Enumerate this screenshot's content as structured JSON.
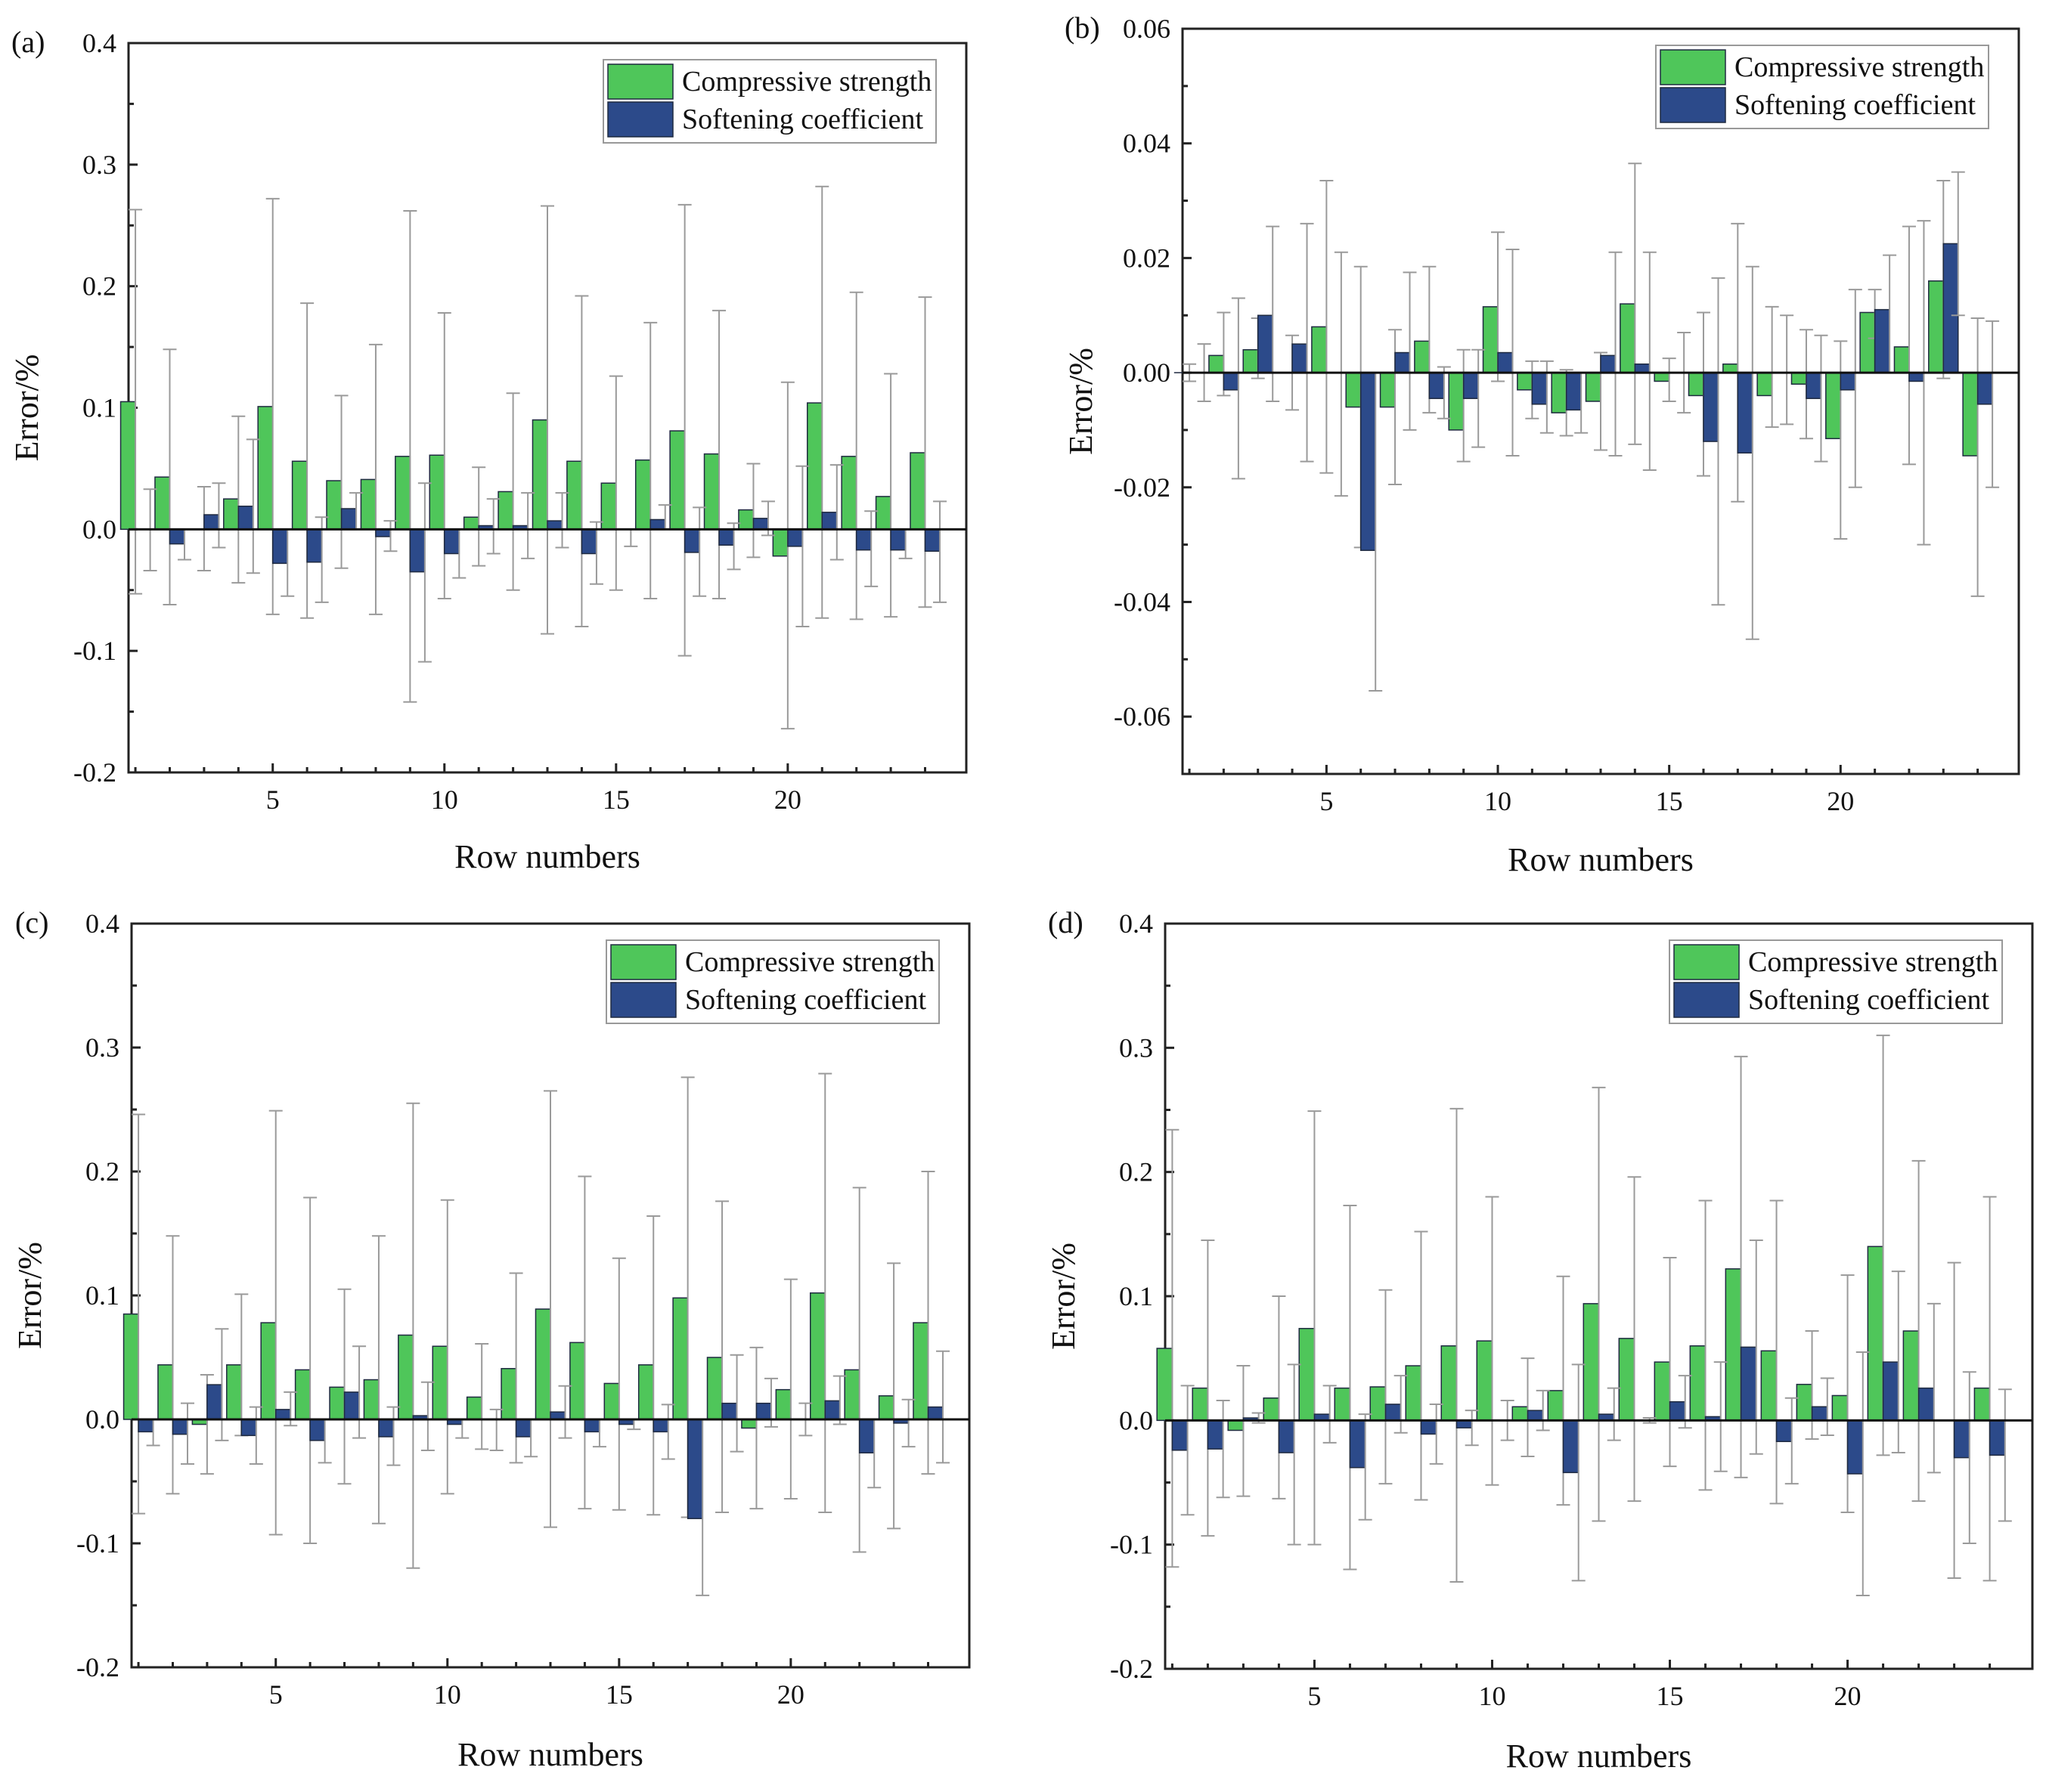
{
  "colors": {
    "compressive": "#4fc65a",
    "softening": "#2c4a8a"
  },
  "chart_data": [
    {
      "type": "bar",
      "panel_label": "(a)",
      "title": "",
      "xlabel": "Row numbers",
      "ylabel": "Error/%",
      "ylim": [
        -0.2,
        0.4
      ],
      "xticks": [
        5,
        10,
        15,
        20
      ],
      "yticks": [
        -0.2,
        -0.1,
        0.0,
        0.1,
        0.2,
        0.3,
        0.4
      ],
      "ytick_labels": [
        "-0.2",
        "-0.1",
        "0.0",
        "0.1",
        "0.2",
        "0.3",
        "0.4"
      ],
      "legend": {
        "position": "top-right",
        "entries": [
          "Compressive strength",
          "Softening coefficient"
        ]
      },
      "x": [
        1,
        2,
        3,
        4,
        5,
        6,
        7,
        8,
        9,
        10,
        11,
        12,
        13,
        14,
        15,
        16,
        17,
        18,
        19,
        20,
        21,
        22,
        23,
        24
      ],
      "series": [
        {
          "name": "Compressive strength",
          "values": [
            0.105,
            0.043,
            0.0,
            0.025,
            0.101,
            0.056,
            0.04,
            0.041,
            0.06,
            0.061,
            0.01,
            0.031,
            0.09,
            0.056,
            0.038,
            0.057,
            0.081,
            0.062,
            0.016,
            -0.022,
            0.104,
            0.06,
            0.027,
            0.063
          ],
          "error_upper": [
            0.263,
            0.148,
            0.035,
            0.093,
            0.272,
            0.186,
            0.11,
            0.152,
            0.262,
            0.178,
            0.051,
            0.112,
            0.266,
            0.192,
            0.126,
            0.17,
            0.267,
            0.18,
            0.054,
            0.121,
            0.282,
            0.195,
            0.128,
            0.191
          ],
          "error_lower": [
            -0.053,
            -0.062,
            -0.034,
            -0.044,
            -0.07,
            -0.073,
            -0.032,
            -0.07,
            -0.142,
            -0.057,
            -0.03,
            -0.05,
            -0.086,
            -0.08,
            -0.05,
            -0.057,
            -0.104,
            -0.057,
            -0.023,
            -0.164,
            -0.073,
            -0.074,
            -0.072,
            -0.064
          ]
        },
        {
          "name": "Softening coefficient",
          "values": [
            0.0,
            -0.012,
            0.012,
            0.019,
            -0.028,
            -0.027,
            0.017,
            -0.006,
            -0.035,
            -0.02,
            0.003,
            0.003,
            0.007,
            -0.02,
            0.0,
            0.008,
            -0.019,
            -0.013,
            0.009,
            -0.014,
            0.014,
            -0.017,
            -0.017,
            -0.018
          ],
          "error_upper": [
            0.033,
            0.0,
            0.038,
            0.074,
            0.0,
            0.01,
            0.03,
            0.007,
            0.038,
            0.0,
            0.025,
            0.03,
            0.03,
            0.006,
            0.0,
            0.02,
            0.018,
            0.005,
            0.023,
            0.052,
            0.053,
            0.015,
            0.0,
            0.023
          ],
          "error_lower": [
            -0.034,
            -0.025,
            -0.015,
            -0.036,
            -0.055,
            -0.06,
            0.0,
            -0.018,
            -0.109,
            -0.04,
            -0.02,
            -0.024,
            -0.015,
            -0.045,
            -0.014,
            0.0,
            -0.055,
            -0.033,
            -0.005,
            -0.08,
            -0.025,
            -0.047,
            -0.024,
            -0.06
          ]
        }
      ]
    },
    {
      "type": "bar",
      "panel_label": "(b)",
      "title": "",
      "xlabel": "Row numbers",
      "ylabel": "Error/%",
      "ylim": [
        -0.07,
        0.06
      ],
      "xticks": [
        5,
        10,
        15,
        20
      ],
      "yticks": [
        -0.06,
        -0.04,
        -0.02,
        0.0,
        0.02,
        0.04,
        0.06
      ],
      "ytick_labels": [
        "-0.06",
        "-0.04",
        "-0.02",
        "0.00",
        "0.02",
        "0.04",
        "0.06"
      ],
      "legend": {
        "position": "top-right",
        "entries": [
          "Compressive strength",
          "Softening coefficient"
        ]
      },
      "x": [
        1,
        2,
        3,
        4,
        5,
        6,
        7,
        8,
        9,
        10,
        11,
        12,
        13,
        14,
        15,
        16,
        17,
        18,
        19,
        20,
        21,
        22,
        23,
        24
      ],
      "series": [
        {
          "name": "Compressive strength",
          "values": [
            0.0,
            0.003,
            0.004,
            0.0,
            0.008,
            -0.006,
            -0.006,
            0.0055,
            -0.01,
            0.0115,
            -0.003,
            -0.007,
            -0.005,
            0.012,
            -0.0015,
            -0.004,
            0.0015,
            -0.004,
            -0.002,
            -0.0115,
            0.0105,
            0.0045,
            0.016,
            -0.0145
          ],
          "error_upper": [
            0.0015,
            0.0105,
            0.0095,
            0.0065,
            0.0335,
            0.0185,
            0.0075,
            0.0185,
            0.004,
            0.0245,
            0.002,
            0.0005,
            0.0035,
            0.0365,
            0.0025,
            0.0105,
            0.026,
            0.0115,
            0.0075,
            0.0055,
            0.0145,
            0.0255,
            0.0335,
            0.0095
          ],
          "error_lower": [
            -0.0015,
            -0.004,
            -0.001,
            -0.0065,
            -0.0175,
            -0.0305,
            -0.0195,
            -0.007,
            -0.0155,
            -0.0015,
            -0.008,
            -0.011,
            -0.0135,
            -0.0125,
            -0.005,
            -0.018,
            -0.0225,
            -0.0095,
            -0.0115,
            -0.029,
            0.006,
            -0.016,
            -0.001,
            -0.039
          ]
        },
        {
          "name": "Softening coefficient",
          "values": [
            0.0,
            -0.003,
            0.01,
            0.005,
            0.0,
            -0.031,
            0.0035,
            -0.0045,
            -0.0045,
            0.0035,
            -0.0055,
            -0.0065,
            0.003,
            0.0015,
            0.0,
            -0.012,
            -0.014,
            0.0,
            -0.0045,
            -0.003,
            0.011,
            -0.0015,
            0.0225,
            -0.0055
          ],
          "error_upper": [
            0.005,
            0.013,
            0.0255,
            0.026,
            0.021,
            0.0,
            0.0175,
            0.001,
            0.004,
            0.0215,
            0.002,
            0.0,
            0.021,
            0.021,
            0.007,
            0.0165,
            0.0185,
            0.01,
            0.0065,
            0.0145,
            0.0205,
            0.0265,
            0.035,
            0.009
          ],
          "error_lower": [
            -0.005,
            -0.0185,
            -0.005,
            -0.0155,
            -0.0215,
            -0.0555,
            -0.01,
            -0.008,
            -0.013,
            -0.0145,
            -0.0105,
            -0.0105,
            -0.0145,
            -0.017,
            -0.007,
            -0.0405,
            -0.0465,
            -0.009,
            -0.0155,
            -0.02,
            0.0,
            -0.03,
            0.01,
            -0.02
          ]
        }
      ]
    },
    {
      "type": "bar",
      "panel_label": "(c)",
      "title": "",
      "xlabel": "Row numbers",
      "ylabel": "Error/%",
      "ylim": [
        -0.2,
        0.4
      ],
      "xticks": [
        5,
        10,
        15,
        20
      ],
      "yticks": [
        -0.2,
        -0.1,
        0.0,
        0.1,
        0.2,
        0.3,
        0.4
      ],
      "ytick_labels": [
        "-0.2",
        "-0.1",
        "0.0",
        "0.1",
        "0.2",
        "0.3",
        "0.4"
      ],
      "legend": {
        "position": "top-right",
        "entries": [
          "Compressive strength",
          "Softening coefficient"
        ]
      },
      "x": [
        1,
        2,
        3,
        4,
        5,
        6,
        7,
        8,
        9,
        10,
        11,
        12,
        13,
        14,
        15,
        16,
        17,
        18,
        19,
        20,
        21,
        22,
        23,
        24
      ],
      "series": [
        {
          "name": "Compressive strength",
          "values": [
            0.085,
            0.044,
            -0.004,
            0.044,
            0.078,
            0.04,
            0.026,
            0.032,
            0.068,
            0.059,
            0.018,
            0.041,
            0.089,
            0.062,
            0.029,
            0.044,
            0.098,
            0.05,
            -0.007,
            0.024,
            0.102,
            0.04,
            0.019,
            0.078
          ],
          "error_upper": [
            0.246,
            0.148,
            0.036,
            0.101,
            0.249,
            0.179,
            0.105,
            0.148,
            0.255,
            0.177,
            0.061,
            0.118,
            0.265,
            0.196,
            0.13,
            0.164,
            0.276,
            0.176,
            0.058,
            0.113,
            0.279,
            0.187,
            0.126,
            0.2
          ],
          "error_lower": [
            -0.076,
            -0.06,
            -0.044,
            -0.013,
            -0.093,
            -0.1,
            -0.052,
            -0.084,
            -0.12,
            -0.06,
            -0.024,
            -0.035,
            -0.087,
            -0.072,
            -0.073,
            -0.077,
            -0.079,
            -0.075,
            -0.072,
            -0.064,
            -0.075,
            -0.107,
            -0.088,
            -0.044
          ]
        },
        {
          "name": "Softening coefficient",
          "values": [
            -0.01,
            -0.012,
            0.028,
            -0.013,
            0.008,
            -0.017,
            0.022,
            -0.014,
            0.003,
            -0.004,
            0.0,
            -0.014,
            0.006,
            -0.01,
            -0.004,
            -0.01,
            -0.08,
            0.013,
            0.013,
            0.0,
            0.015,
            -0.027,
            -0.003,
            0.01
          ],
          "error_upper": [
            0.0,
            0.013,
            0.073,
            0.01,
            0.022,
            0.0,
            0.059,
            0.01,
            0.03,
            0.0,
            0.008,
            0.0,
            0.027,
            0.0,
            0.0,
            0.012,
            0.0,
            0.052,
            0.033,
            0.013,
            0.035,
            0.0,
            0.016,
            0.055
          ],
          "error_lower": [
            -0.021,
            -0.036,
            -0.017,
            -0.036,
            -0.005,
            -0.035,
            -0.015,
            -0.037,
            -0.025,
            -0.015,
            -0.025,
            -0.03,
            -0.015,
            -0.022,
            -0.008,
            -0.032,
            -0.142,
            -0.026,
            -0.006,
            -0.013,
            -0.004,
            -0.055,
            -0.022,
            -0.035
          ]
        }
      ]
    },
    {
      "type": "bar",
      "panel_label": "(d)",
      "title": "",
      "xlabel": "Row numbers",
      "ylabel": "Error/%",
      "ylim": [
        -0.2,
        0.4
      ],
      "xticks": [
        5,
        10,
        15,
        20
      ],
      "yticks": [
        -0.2,
        -0.1,
        0.0,
        0.1,
        0.2,
        0.3,
        0.4
      ],
      "ytick_labels": [
        "-0.2",
        "-0.1",
        "0.0",
        "0.1",
        "0.2",
        "0.3",
        "0.4"
      ],
      "legend": {
        "position": "top-right",
        "entries": [
          "Compressive strength",
          "Softening coefficient"
        ]
      },
      "x": [
        1,
        2,
        3,
        4,
        5,
        6,
        7,
        8,
        9,
        10,
        11,
        12,
        13,
        14,
        15,
        16,
        17,
        18,
        19,
        20,
        21,
        22,
        23,
        24
      ],
      "series": [
        {
          "name": "Compressive strength",
          "values": [
            0.058,
            0.026,
            -0.008,
            0.018,
            0.074,
            0.026,
            0.027,
            0.044,
            0.06,
            0.064,
            0.011,
            0.024,
            0.094,
            0.066,
            0.047,
            0.06,
            0.122,
            0.056,
            0.029,
            0.02,
            0.14,
            0.072,
            0.0,
            0.026
          ],
          "error_upper": [
            0.234,
            0.145,
            0.044,
            0.1,
            0.249,
            0.173,
            0.105,
            0.152,
            0.251,
            0.18,
            0.05,
            0.116,
            0.268,
            0.196,
            0.131,
            0.177,
            0.293,
            0.177,
            0.072,
            0.117,
            0.31,
            0.209,
            0.127,
            0.18
          ],
          "error_lower": [
            -0.118,
            -0.093,
            -0.061,
            -0.063,
            -0.1,
            -0.12,
            -0.051,
            -0.064,
            -0.13,
            -0.052,
            -0.029,
            -0.068,
            -0.081,
            -0.065,
            -0.037,
            -0.056,
            -0.046,
            -0.067,
            -0.015,
            -0.074,
            -0.028,
            -0.065,
            -0.127,
            -0.129
          ]
        },
        {
          "name": "Softening coefficient",
          "values": [
            -0.024,
            -0.023,
            0.002,
            -0.026,
            0.005,
            -0.038,
            0.013,
            -0.011,
            -0.006,
            0.0,
            0.008,
            -0.042,
            0.005,
            0.0,
            0.015,
            0.003,
            0.059,
            -0.017,
            0.011,
            -0.043,
            0.047,
            0.026,
            -0.03,
            -0.028
          ],
          "error_upper": [
            0.028,
            0.016,
            0.006,
            0.045,
            0.028,
            0.005,
            0.036,
            0.013,
            0.008,
            0.016,
            0.024,
            0.045,
            0.026,
            0.002,
            0.036,
            0.047,
            0.145,
            0.018,
            0.034,
            0.055,
            0.12,
            0.094,
            0.039,
            0.025
          ],
          "error_lower": [
            -0.076,
            -0.062,
            -0.002,
            -0.1,
            -0.018,
            -0.08,
            -0.01,
            -0.035,
            -0.02,
            -0.016,
            -0.008,
            -0.129,
            -0.016,
            -0.002,
            -0.006,
            -0.041,
            -0.027,
            -0.051,
            -0.012,
            -0.141,
            -0.026,
            -0.042,
            -0.099,
            -0.081
          ]
        }
      ]
    }
  ]
}
